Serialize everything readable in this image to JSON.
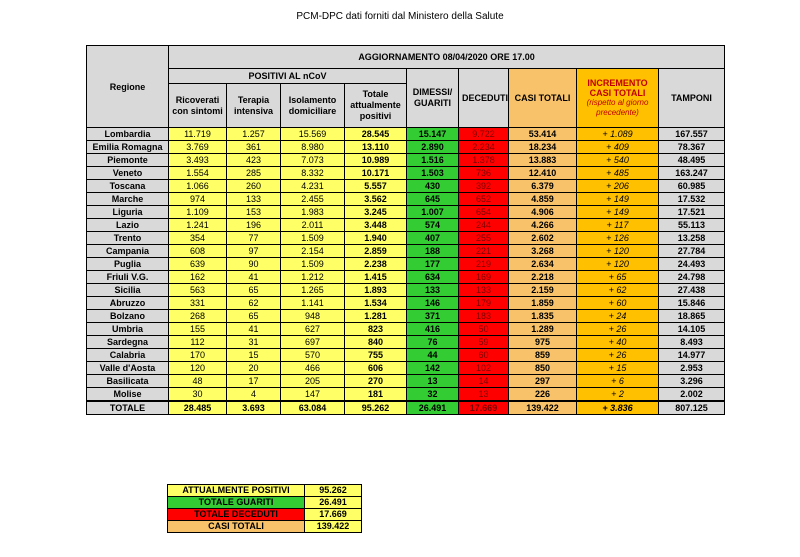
{
  "source_title": "PCM-DPC dati forniti dal Ministero della Salute",
  "table": {
    "update_title": "AGGIORNAMENTO 08/04/2020 ORE 17.00",
    "region_header": "Regione",
    "positivi_header": "POSITIVI AL nCoV",
    "headers": {
      "ricoverati": "Ricoverati con sintomi",
      "terapia": "Terapia intensiva",
      "isolamento": "Isolamento domiciliare",
      "totale_positivi": "Totale attualmente positivi",
      "dimessi": "DIMESSI/ GUARITI",
      "deceduti": "DECEDUTI",
      "casi": "CASI TOTALI",
      "incremento": "INCREMENTO CASI TOTALI",
      "incremento_sub": "(rispetto al giorno precedente)",
      "tamponi": "TAMPONI"
    },
    "rows": [
      {
        "regione": "Lombardia",
        "ricoverati": "11.719",
        "terapia": "1.257",
        "isolamento": "15.569",
        "totale": "28.545",
        "dimessi": "15.147",
        "deceduti": "9.722",
        "casi": "53.414",
        "incremento": "+ 1.089",
        "tamponi": "167.557"
      },
      {
        "regione": "Emilia Romagna",
        "ricoverati": "3.769",
        "terapia": "361",
        "isolamento": "8.980",
        "totale": "13.110",
        "dimessi": "2.890",
        "deceduti": "2.234",
        "casi": "18.234",
        "incremento": "+ 409",
        "tamponi": "78.367"
      },
      {
        "regione": "Piemonte",
        "ricoverati": "3.493",
        "terapia": "423",
        "isolamento": "7.073",
        "totale": "10.989",
        "dimessi": "1.516",
        "deceduti": "1.378",
        "casi": "13.883",
        "incremento": "+ 540",
        "tamponi": "48.495"
      },
      {
        "regione": "Veneto",
        "ricoverati": "1.554",
        "terapia": "285",
        "isolamento": "8.332",
        "totale": "10.171",
        "dimessi": "1.503",
        "deceduti": "736",
        "casi": "12.410",
        "incremento": "+ 485",
        "tamponi": "163.247"
      },
      {
        "regione": "Toscana",
        "ricoverati": "1.066",
        "terapia": "260",
        "isolamento": "4.231",
        "totale": "5.557",
        "dimessi": "430",
        "deceduti": "392",
        "casi": "6.379",
        "incremento": "+ 206",
        "tamponi": "60.985"
      },
      {
        "regione": "Marche",
        "ricoverati": "974",
        "terapia": "133",
        "isolamento": "2.455",
        "totale": "3.562",
        "dimessi": "645",
        "deceduti": "652",
        "casi": "4.859",
        "incremento": "+ 149",
        "tamponi": "17.532"
      },
      {
        "regione": "Liguria",
        "ricoverati": "1.109",
        "terapia": "153",
        "isolamento": "1.983",
        "totale": "3.245",
        "dimessi": "1.007",
        "deceduti": "654",
        "casi": "4.906",
        "incremento": "+ 149",
        "tamponi": "17.521"
      },
      {
        "regione": "Lazio",
        "ricoverati": "1.241",
        "terapia": "196",
        "isolamento": "2.011",
        "totale": "3.448",
        "dimessi": "574",
        "deceduti": "244",
        "casi": "4.266",
        "incremento": "+ 117",
        "tamponi": "55.113"
      },
      {
        "regione": "Trento",
        "ricoverati": "354",
        "terapia": "77",
        "isolamento": "1.509",
        "totale": "1.940",
        "dimessi": "407",
        "deceduti": "255",
        "casi": "2.602",
        "incremento": "+ 126",
        "tamponi": "13.258"
      },
      {
        "regione": "Campania",
        "ricoverati": "608",
        "terapia": "97",
        "isolamento": "2.154",
        "totale": "2.859",
        "dimessi": "188",
        "deceduti": "221",
        "casi": "3.268",
        "incremento": "+ 120",
        "tamponi": "27.784"
      },
      {
        "regione": "Puglia",
        "ricoverati": "639",
        "terapia": "90",
        "isolamento": "1.509",
        "totale": "2.238",
        "dimessi": "177",
        "deceduti": "219",
        "casi": "2.634",
        "incremento": "+ 120",
        "tamponi": "24.493"
      },
      {
        "regione": "Friuli V.G.",
        "ricoverati": "162",
        "terapia": "41",
        "isolamento": "1.212",
        "totale": "1.415",
        "dimessi": "634",
        "deceduti": "169",
        "casi": "2.218",
        "incremento": "+ 65",
        "tamponi": "24.798"
      },
      {
        "regione": "Sicilia",
        "ricoverati": "563",
        "terapia": "65",
        "isolamento": "1.265",
        "totale": "1.893",
        "dimessi": "133",
        "deceduti": "133",
        "casi": "2.159",
        "incremento": "+ 62",
        "tamponi": "27.438"
      },
      {
        "regione": "Abruzzo",
        "ricoverati": "331",
        "terapia": "62",
        "isolamento": "1.141",
        "totale": "1.534",
        "dimessi": "146",
        "deceduti": "179",
        "casi": "1.859",
        "incremento": "+ 60",
        "tamponi": "15.846"
      },
      {
        "regione": "Bolzano",
        "ricoverati": "268",
        "terapia": "65",
        "isolamento": "948",
        "totale": "1.281",
        "dimessi": "371",
        "deceduti": "183",
        "casi": "1.835",
        "incremento": "+ 24",
        "tamponi": "18.865"
      },
      {
        "regione": "Umbria",
        "ricoverati": "155",
        "terapia": "41",
        "isolamento": "627",
        "totale": "823",
        "dimessi": "416",
        "deceduti": "50",
        "casi": "1.289",
        "incremento": "+ 26",
        "tamponi": "14.105"
      },
      {
        "regione": "Sardegna",
        "ricoverati": "112",
        "terapia": "31",
        "isolamento": "697",
        "totale": "840",
        "dimessi": "76",
        "deceduti": "59",
        "casi": "975",
        "incremento": "+ 40",
        "tamponi": "8.493"
      },
      {
        "regione": "Calabria",
        "ricoverati": "170",
        "terapia": "15",
        "isolamento": "570",
        "totale": "755",
        "dimessi": "44",
        "deceduti": "60",
        "casi": "859",
        "incremento": "+ 26",
        "tamponi": "14.977"
      },
      {
        "regione": "Valle d'Aosta",
        "ricoverati": "120",
        "terapia": "20",
        "isolamento": "466",
        "totale": "606",
        "dimessi": "142",
        "deceduti": "102",
        "casi": "850",
        "incremento": "+ 15",
        "tamponi": "2.953"
      },
      {
        "regione": "Basilicata",
        "ricoverati": "48",
        "terapia": "17",
        "isolamento": "205",
        "totale": "270",
        "dimessi": "13",
        "deceduti": "14",
        "casi": "297",
        "incremento": "+ 6",
        "tamponi": "3.296"
      },
      {
        "regione": "Molise",
        "ricoverati": "30",
        "terapia": "4",
        "isolamento": "147",
        "totale": "181",
        "dimessi": "32",
        "deceduti": "13",
        "casi": "226",
        "incremento": "+ 2",
        "tamponi": "2.002"
      }
    ],
    "total": {
      "regione": "TOTALE",
      "ricoverati": "28.485",
      "terapia": "3.693",
      "isolamento": "63.084",
      "totale": "95.262",
      "dimessi": "26.491",
      "deceduti": "17.669",
      "casi": "139.422",
      "incremento": "+ 3.836",
      "tamponi": "807.125"
    }
  },
  "summary": [
    {
      "label": "ATTUALMENTE POSITIVI",
      "value": "95.262",
      "color": "#ffff66"
    },
    {
      "label": "TOTALE GUARITI",
      "value": "26.491",
      "color": "#33cc33"
    },
    {
      "label": "TOTALE DECEDUTI",
      "value": "17.669",
      "color": "#ff0000"
    },
    {
      "label": "CASI TOTALI",
      "value": "139.422",
      "color": "#f8c26a"
    }
  ]
}
